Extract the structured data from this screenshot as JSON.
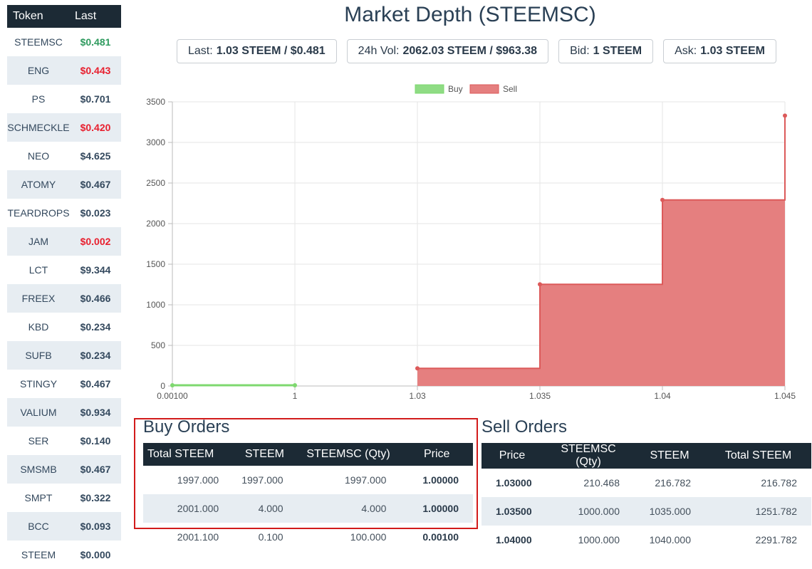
{
  "sidebar": {
    "header": {
      "token": "Token",
      "last": "Last"
    },
    "rows": [
      {
        "token": "STEEMSC",
        "last": "$0.481",
        "trend": "up"
      },
      {
        "token": "ENG",
        "last": "$0.443",
        "trend": "down"
      },
      {
        "token": "PS",
        "last": "$0.701",
        "trend": ""
      },
      {
        "token": "SCHMECKLE",
        "last": "$0.420",
        "trend": "down"
      },
      {
        "token": "NEO",
        "last": "$4.625",
        "trend": ""
      },
      {
        "token": "ATOMY",
        "last": "$0.467",
        "trend": ""
      },
      {
        "token": "TEARDROPS",
        "last": "$0.023",
        "trend": ""
      },
      {
        "token": "JAM",
        "last": "$0.002",
        "trend": "down"
      },
      {
        "token": "LCT",
        "last": "$9.344",
        "trend": ""
      },
      {
        "token": "FREEX",
        "last": "$0.466",
        "trend": ""
      },
      {
        "token": "KBD",
        "last": "$0.234",
        "trend": ""
      },
      {
        "token": "SUFB",
        "last": "$0.234",
        "trend": ""
      },
      {
        "token": "STINGY",
        "last": "$0.467",
        "trend": ""
      },
      {
        "token": "VALIUM",
        "last": "$0.934",
        "trend": ""
      },
      {
        "token": "SER",
        "last": "$0.140",
        "trend": ""
      },
      {
        "token": "SMSMB",
        "last": "$0.467",
        "trend": ""
      },
      {
        "token": "SMPT",
        "last": "$0.322",
        "trend": ""
      },
      {
        "token": "BCC",
        "last": "$0.093",
        "trend": ""
      },
      {
        "token": "STEEM",
        "last": "$0.000",
        "trend": ""
      }
    ]
  },
  "title": "Market Depth (STEEMSC)",
  "stats": [
    {
      "label": "Last:",
      "value": "1.03 STEEM / $0.481"
    },
    {
      "label": "24h Vol:",
      "value": "2062.03 STEEM / $963.38"
    },
    {
      "label": "Bid:",
      "value": "1 STEEM"
    },
    {
      "label": "Ask:",
      "value": "1.03 STEEM"
    }
  ],
  "colors": {
    "buy": "#8fdc84",
    "sell": "#e57f7f",
    "sell_line": "#dc5a5a",
    "buy_line": "#7ed86f",
    "header_bg": "#1c2a35",
    "highlight": "#d21b1b"
  },
  "chart_data": {
    "type": "area",
    "legend": [
      "Buy",
      "Sell"
    ],
    "legend_position": "top-center",
    "x_ticks": [
      "0.00100",
      "1",
      "1.03",
      "1.035",
      "1.04",
      "1.045"
    ],
    "y_ticks": [
      "0",
      "500",
      "1000",
      "1500",
      "2000",
      "2500",
      "3000",
      "3500"
    ],
    "ylim": [
      0,
      3500
    ],
    "grid": true,
    "series": [
      {
        "name": "Buy",
        "x": [
          "0.00100",
          "1"
        ],
        "y": [
          0,
          0
        ]
      },
      {
        "name": "Sell",
        "x": [
          "1.03",
          "1.035",
          "1.04",
          "1.045"
        ],
        "y": [
          216.782,
          1251.782,
          2291.782,
          3330
        ]
      }
    ]
  },
  "buy_orders": {
    "title": "Buy Orders",
    "headers": [
      "Total STEEM",
      "STEEM",
      "STEEMSC (Qty)",
      "Price"
    ],
    "rows": [
      [
        "1997.000",
        "1997.000",
        "1997.000",
        "1.00000"
      ],
      [
        "2001.000",
        "4.000",
        "4.000",
        "1.00000"
      ],
      [
        "2001.100",
        "0.100",
        "100.000",
        "0.00100"
      ]
    ]
  },
  "sell_orders": {
    "title": "Sell Orders",
    "headers": [
      "Price",
      "STEEMSC (Qty)",
      "STEEM",
      "Total STEEM"
    ],
    "rows": [
      [
        "1.03000",
        "210.468",
        "216.782",
        "216.782"
      ],
      [
        "1.03500",
        "1000.000",
        "1035.000",
        "1251.782"
      ],
      [
        "1.04000",
        "1000.000",
        "1040.000",
        "2291.782"
      ]
    ]
  }
}
